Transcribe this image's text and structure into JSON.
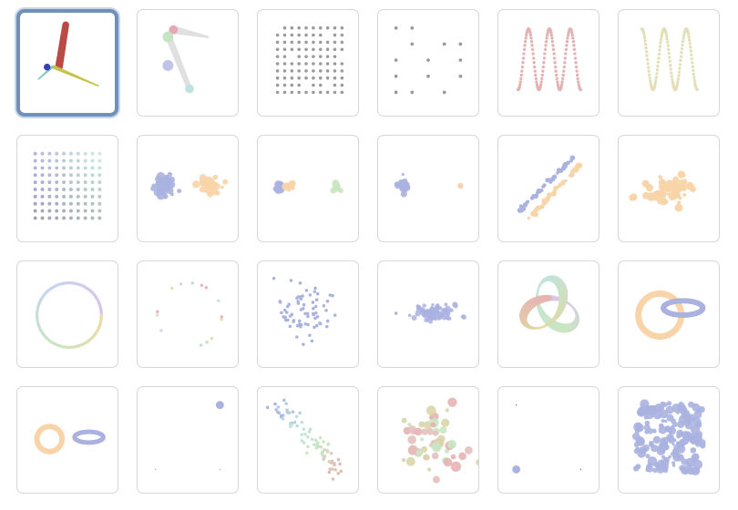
{
  "gallery": {
    "selected_index": 0,
    "columns": 6,
    "items": [
      {
        "name": "axes-3d",
        "colors": [
          "#b94a45",
          "#c9c24a",
          "#7fc9c6",
          "#3b3fb0"
        ]
      },
      {
        "name": "two-tapered-lines",
        "colors": [
          "#e6a9b4",
          "#c6e3c2",
          "#bfc3e8",
          "#bfe3df",
          "#e0e0e0"
        ]
      },
      {
        "name": "dense-dot-grid",
        "colors": [
          "#9a9a9a"
        ]
      },
      {
        "name": "sparse-dot-grid",
        "colors": [
          "#9a9a9a"
        ]
      },
      {
        "name": "sine-wave-pink",
        "colors": [
          "#e3b3b3"
        ]
      },
      {
        "name": "sine-wave-olive",
        "colors": [
          "#e3e0b8"
        ]
      },
      {
        "name": "rainbow-dot-grid",
        "colors": [
          "#b7b3ea",
          "#c6d2e0",
          "#c9f0d8"
        ]
      },
      {
        "name": "two-clusters",
        "colors": [
          "#aab2e0",
          "#f8d4a8"
        ]
      },
      {
        "name": "three-small-clusters",
        "colors": [
          "#aab2e0",
          "#f8d4a8",
          "#c9e6c2"
        ]
      },
      {
        "name": "cluster-and-outlier",
        "colors": [
          "#aab2e0",
          "#f8d4a8"
        ]
      },
      {
        "name": "parallel-lines",
        "colors": [
          "#aab2e0",
          "#f8d4a8"
        ]
      },
      {
        "name": "orange-scatter",
        "colors": [
          "#f8d4a8"
        ]
      },
      {
        "name": "rainbow-circle",
        "colors": [
          "#f0d9a6",
          "#c9e6c2",
          "#c9d4ef",
          "#d9c2ec"
        ]
      },
      {
        "name": "sparse-circle",
        "colors": [
          "#f0d9a6",
          "#c9e6c2",
          "#c9d4ef",
          "#e6b3c8"
        ]
      },
      {
        "name": "blue-scatter",
        "colors": [
          "#aab2e0"
        ]
      },
      {
        "name": "flat-gaussian",
        "colors": [
          "#aab2e0"
        ]
      },
      {
        "name": "trefoil-knot",
        "colors": [
          "#d9c2ec",
          "#c9e6c2",
          "#bfe3df",
          "#e0dba0",
          "#e6b3b3"
        ]
      },
      {
        "name": "linked-rings",
        "colors": [
          "#f8d4a8",
          "#aab2e0"
        ]
      },
      {
        "name": "unlinked-rings",
        "colors": [
          "#f8d4a8",
          "#aab2e0"
        ]
      },
      {
        "name": "corner-points",
        "colors": [
          "#aab2e0"
        ]
      },
      {
        "name": "diagonal-multicolor",
        "colors": [
          "#aab2e0",
          "#bfe3df",
          "#c9e6c2",
          "#e6b3b3"
        ]
      },
      {
        "name": "mixed-blobs",
        "colors": [
          "#e6b3b3",
          "#d9d5a8",
          "#c9e6c2",
          "#e6c0c0"
        ]
      },
      {
        "name": "single-point-corners",
        "colors": [
          "#aab2e0"
        ]
      },
      {
        "name": "dense-blue-square",
        "colors": [
          "#aab2e0"
        ]
      }
    ]
  }
}
